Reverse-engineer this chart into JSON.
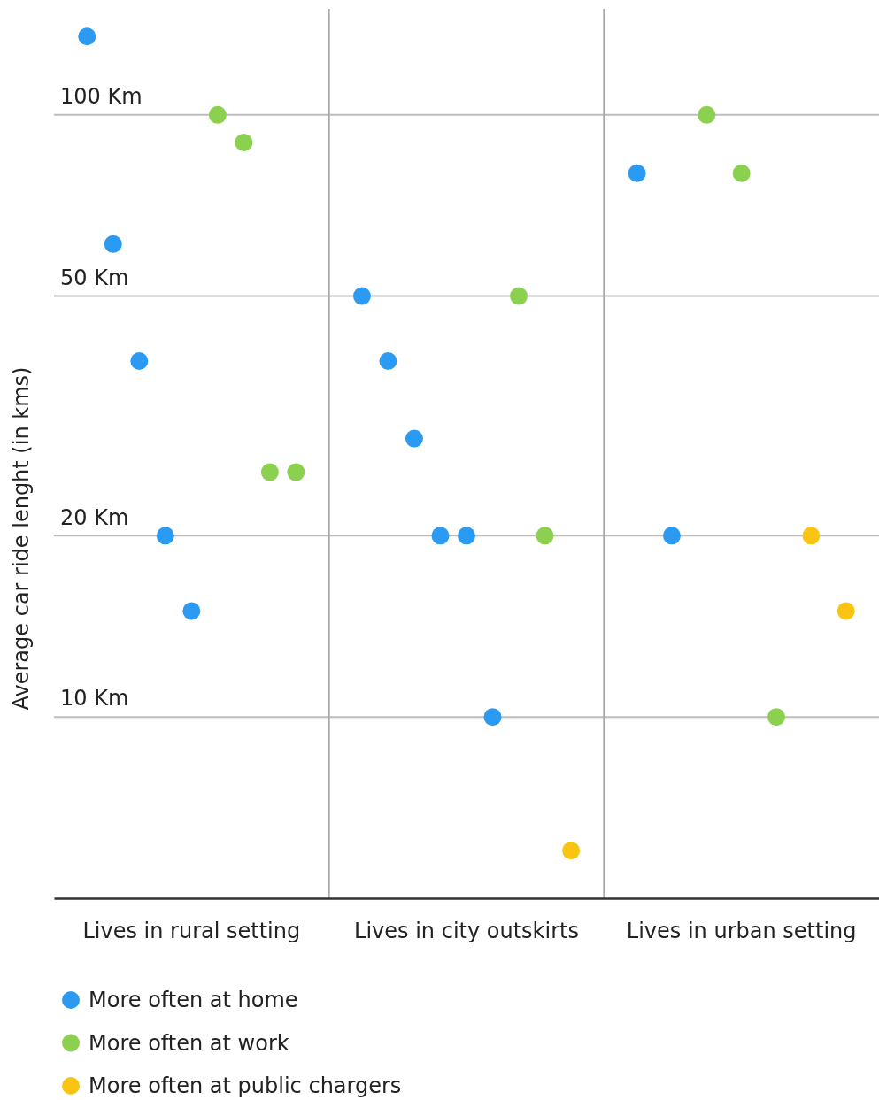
{
  "chart_data": {
    "type": "scatter",
    "ylabel": "Average car ride lenght (in kms)",
    "categories": [
      "Lives in rural setting",
      "Lives in city outskirts",
      "Lives in urban setting"
    ],
    "ylim": [
      5,
      150
    ],
    "log": true,
    "yticks": [
      {
        "value": 10,
        "label": "10 Km"
      },
      {
        "value": 20,
        "label": "20 Km"
      },
      {
        "value": 50,
        "label": "50 Km"
      },
      {
        "value": 100,
        "label": "100 Km"
      }
    ],
    "grid": true,
    "legend": "bottom",
    "marker": "circle",
    "series": [
      {
        "name": "More often at home",
        "color": "#2b9af3",
        "x": [
          "Lives in rural setting",
          "Lives in rural setting",
          "Lives in rural setting",
          "Lives in rural setting",
          "Lives in rural setting",
          "Lives in city outskirts",
          "Lives in city outskirts",
          "Lives in city outskirts",
          "Lives in city outskirts",
          "Lives in city outskirts",
          "Lives in city outskirts",
          "Lives in urban setting",
          "Lives in urban setting"
        ],
        "values": [
          135,
          61,
          39,
          20,
          15,
          50,
          39,
          29,
          20,
          20,
          10,
          80,
          20
        ]
      },
      {
        "name": "More often at work",
        "color": "#8cd050",
        "x": [
          "Lives in rural setting",
          "Lives in rural setting",
          "Lives in rural setting",
          "Lives in rural setting",
          "Lives in city outskirts",
          "Lives in city outskirts",
          "Lives in urban setting",
          "Lives in urban setting",
          "Lives in urban setting"
        ],
        "values": [
          100,
          90,
          25.5,
          25.5,
          50,
          20,
          100,
          80,
          10
        ]
      },
      {
        "name": "More often at public chargers",
        "color": "#f9c512",
        "x": [
          "Lives in city outskirts",
          "Lives in urban setting",
          "Lives in urban setting"
        ],
        "values": [
          6,
          20,
          15
        ]
      }
    ]
  }
}
